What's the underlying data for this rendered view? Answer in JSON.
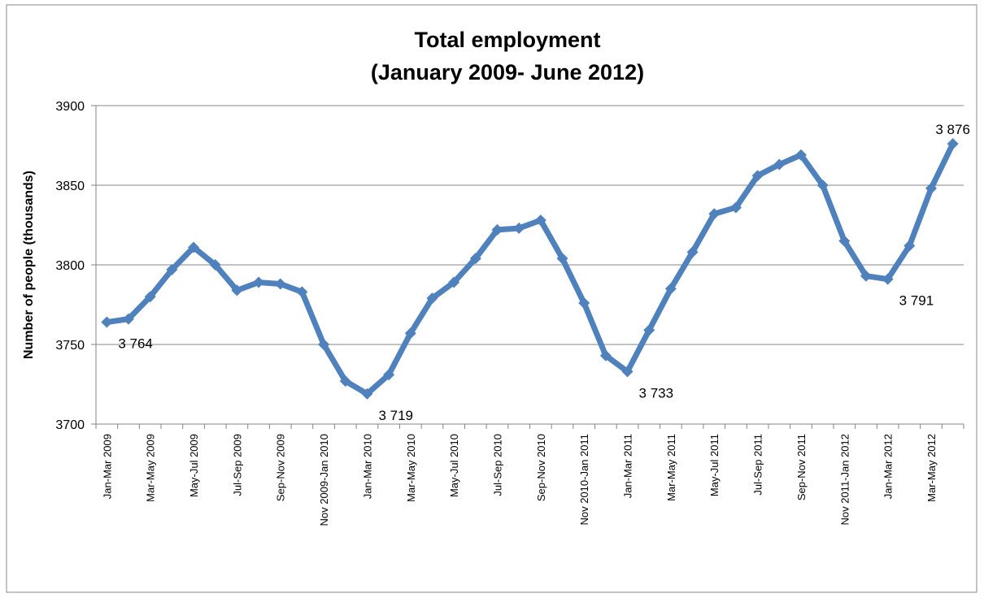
{
  "chart_data": {
    "type": "line",
    "title": "Total employment",
    "subtitle": "(January 2009- June 2012)",
    "y_label": "Number of people (thousands)",
    "categories": [
      "Jan-Mar 2009",
      null,
      "Mar-May 2009",
      null,
      "May-Jul 2009",
      null,
      "Jul-Sep 2009",
      null,
      "Sep-Nov 2009",
      null,
      "Nov 2009-Jan 2010",
      null,
      "Jan-Mar 2010",
      null,
      "Mar-May 2010",
      null,
      "May-Jul 2010",
      null,
      "Jul-Sep 2010",
      null,
      "Sep-Nov 2010",
      null,
      "Nov 2010-Jan 2011",
      null,
      "Jan-Mar 2011",
      null,
      "Mar-May 2011",
      null,
      "May-Jul 2011",
      null,
      "Jul-Sep 2011",
      null,
      "Sep-Nov 2011",
      null,
      "Nov 2011-Jan 2012",
      null,
      "Jan-Mar 2012",
      null,
      "Mar-May 2012",
      null
    ],
    "series": [
      {
        "name": "Total employment",
        "color": "#4f81bd",
        "values": [
          3764,
          3766,
          3780,
          3797,
          3811,
          3800,
          3784,
          3789,
          3788,
          3783,
          3750,
          3727,
          3719,
          3731,
          3757,
          3779,
          3789,
          3804,
          3822,
          3823,
          3828,
          3804,
          3776,
          3743,
          3733,
          3759,
          3785,
          3808,
          3832,
          3836,
          3856,
          3863,
          3869,
          3850,
          3815,
          3793,
          3791,
          3812,
          3848,
          3876
        ],
        "value_labels": [
          "3 764",
          null,
          null,
          null,
          null,
          null,
          null,
          null,
          null,
          null,
          null,
          null,
          "3 719",
          null,
          null,
          null,
          null,
          null,
          null,
          null,
          null,
          null,
          null,
          null,
          "3 733",
          null,
          null,
          null,
          null,
          null,
          null,
          null,
          null,
          null,
          null,
          null,
          "3 791",
          null,
          null,
          "3 876"
        ]
      }
    ],
    "ylim": [
      3700,
      3900
    ],
    "yticks": [
      3700,
      3750,
      3800,
      3850,
      3900
    ],
    "grid": true
  }
}
